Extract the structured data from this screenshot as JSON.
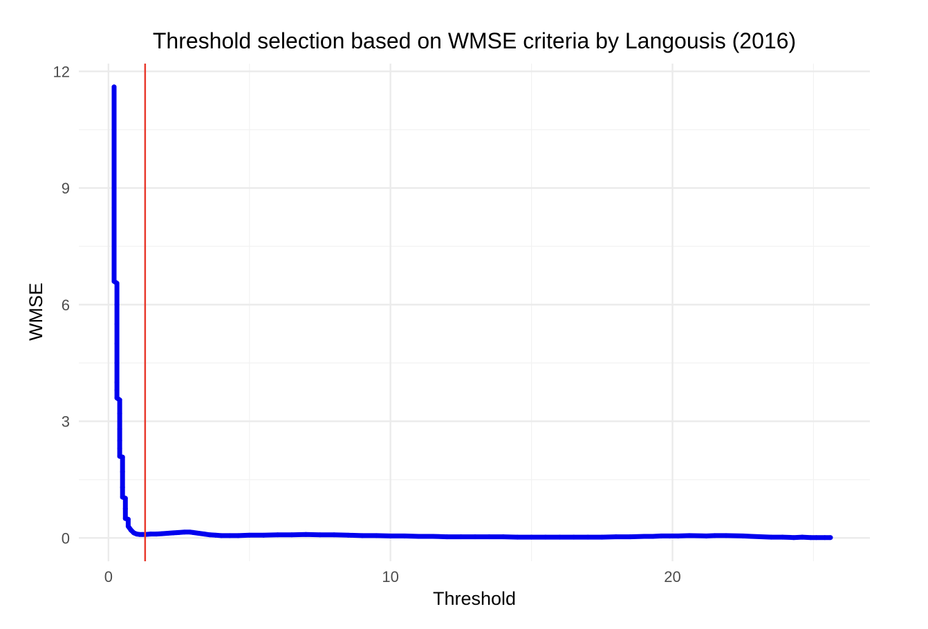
{
  "chart_data": {
    "type": "scatter",
    "title": "Threshold selection based on WMSE criteria by Langousis (2016)",
    "xlabel": "Threshold",
    "ylabel": "WMSE",
    "xlim": [
      -1.05,
      27.0
    ],
    "ylim": [
      -0.6,
      12.2
    ],
    "x_ticks": [
      0,
      10,
      20
    ],
    "x_tick_labels": [
      "0",
      "10",
      "20"
    ],
    "x_minor_ticks": [
      5,
      15,
      25
    ],
    "y_ticks": [
      0,
      3,
      6,
      9,
      12
    ],
    "y_tick_labels": [
      "0",
      "3",
      "6",
      "9",
      "12"
    ],
    "y_minor_ticks": [
      1.5,
      4.5,
      7.5,
      10.5
    ],
    "grid": true,
    "legend": "none",
    "colors": {
      "points": "#0000ee",
      "vline": "#e8392c",
      "grid": "#ebebeb"
    },
    "selected_threshold": 1.3,
    "series": [
      {
        "x": [
          0.2,
          0.2,
          0.2,
          0.2,
          0.2,
          0.2,
          0.2,
          0.2,
          0.2,
          0.2,
          0.2,
          0.2,
          0.3,
          0.3,
          0.3,
          0.3,
          0.3,
          0.3,
          0.3,
          0.3,
          0.4,
          0.4,
          0.4,
          0.4,
          0.4,
          0.4,
          0.5,
          0.5,
          0.5,
          0.5,
          0.6,
          0.6,
          0.6,
          0.7,
          0.7,
          0.8,
          0.9,
          1.0,
          1.1,
          1.2,
          1.3,
          1.5,
          1.7,
          1.9,
          2.1,
          2.3,
          2.5,
          2.7,
          2.9,
          3.0,
          3.2,
          3.4,
          3.6,
          3.8,
          4.0,
          4.3,
          4.6,
          5.0,
          5.5,
          6.0,
          6.5,
          7.0,
          7.5,
          8.0,
          8.5,
          9.0,
          9.5,
          10.0,
          10.5,
          11.0,
          11.5,
          12.0,
          12.5,
          13.0,
          13.5,
          14.0,
          14.5,
          15.0,
          15.5,
          16.0,
          16.5,
          17.0,
          17.5,
          18.0,
          18.5,
          19.0,
          19.3,
          19.6,
          19.9,
          20.2,
          20.6,
          21.2,
          21.5,
          21.9,
          22.5,
          22.8,
          23.5,
          23.9,
          24.3,
          24.6,
          24.9,
          25.1,
          25.4,
          25.6
        ],
        "y": [
          11.6,
          11.0,
          10.5,
          10.0,
          9.5,
          9.0,
          8.5,
          8.0,
          7.5,
          7.0,
          6.8,
          6.6,
          6.55,
          6.0,
          5.5,
          5.0,
          4.5,
          4.0,
          3.8,
          3.6,
          3.55,
          3.2,
          2.8,
          2.5,
          2.3,
          2.1,
          2.08,
          1.7,
          1.3,
          1.05,
          1.02,
          0.75,
          0.5,
          0.48,
          0.3,
          0.2,
          0.13,
          0.1,
          0.09,
          0.09,
          0.09,
          0.1,
          0.1,
          0.11,
          0.12,
          0.13,
          0.14,
          0.15,
          0.15,
          0.14,
          0.12,
          0.1,
          0.08,
          0.07,
          0.06,
          0.06,
          0.06,
          0.07,
          0.07,
          0.08,
          0.08,
          0.09,
          0.08,
          0.08,
          0.07,
          0.06,
          0.06,
          0.05,
          0.05,
          0.04,
          0.04,
          0.03,
          0.03,
          0.03,
          0.03,
          0.03,
          0.02,
          0.02,
          0.02,
          0.02,
          0.02,
          0.02,
          0.02,
          0.03,
          0.03,
          0.04,
          0.04,
          0.05,
          0.05,
          0.05,
          0.06,
          0.05,
          0.06,
          0.06,
          0.05,
          0.04,
          0.02,
          0.02,
          0.01,
          0.02,
          0.01,
          0.01,
          0.01,
          0.01
        ]
      }
    ]
  }
}
